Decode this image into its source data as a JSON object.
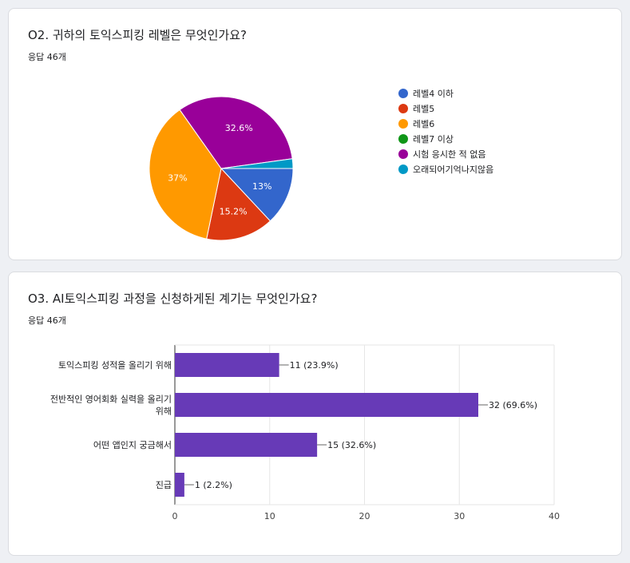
{
  "q2": {
    "title": "O2. 귀하의 토익스피킹 레벨은 무엇인가요?",
    "response_count": "응답 46개",
    "chart_data": {
      "type": "pie",
      "categories": [
        "레벨4 이하",
        "레벨5",
        "레벨6",
        "레벨7 이상",
        "시험 응시한 적 없음",
        "오래되어기억나지않음"
      ],
      "values": [
        6,
        7,
        17,
        0,
        15,
        1
      ],
      "labels": [
        "13%",
        "15.2%",
        "37%",
        "",
        "32.6%",
        ""
      ],
      "colors": [
        "#3366cc",
        "#dc3912",
        "#ff9900",
        "#109618",
        "#990099",
        "#0099c6"
      ],
      "legend": "right"
    }
  },
  "q3": {
    "title": "O3. AI토익스피킹 과정을 신청하게된 계기는 무엇인가요?",
    "response_count": "응답 46개",
    "chart_data": {
      "type": "bar",
      "orientation": "horizontal",
      "categories": [
        "토익스피킹 성적을 올리기 위해",
        "전반적인 영어회화 실력을 올리기 위해",
        "어떤 앱인지 궁금해서",
        "진급"
      ],
      "category_lines": [
        [
          "토익스피킹 성적을 올리기 위해"
        ],
        [
          "전반적인 영어회화 실력을 올리기",
          "위해"
        ],
        [
          "어떤 앱인지 궁금해서"
        ],
        [
          "진급"
        ]
      ],
      "values": [
        11,
        32,
        15,
        1
      ],
      "data_labels": [
        "11 (23.9%)",
        "32 (69.6%)",
        "15 (32.6%)",
        "1 (2.2%)"
      ],
      "xticks": [
        "0",
        "10",
        "20",
        "30",
        "40"
      ],
      "xlim": [
        0,
        40
      ],
      "color": "#673ab7",
      "grid": true
    }
  }
}
